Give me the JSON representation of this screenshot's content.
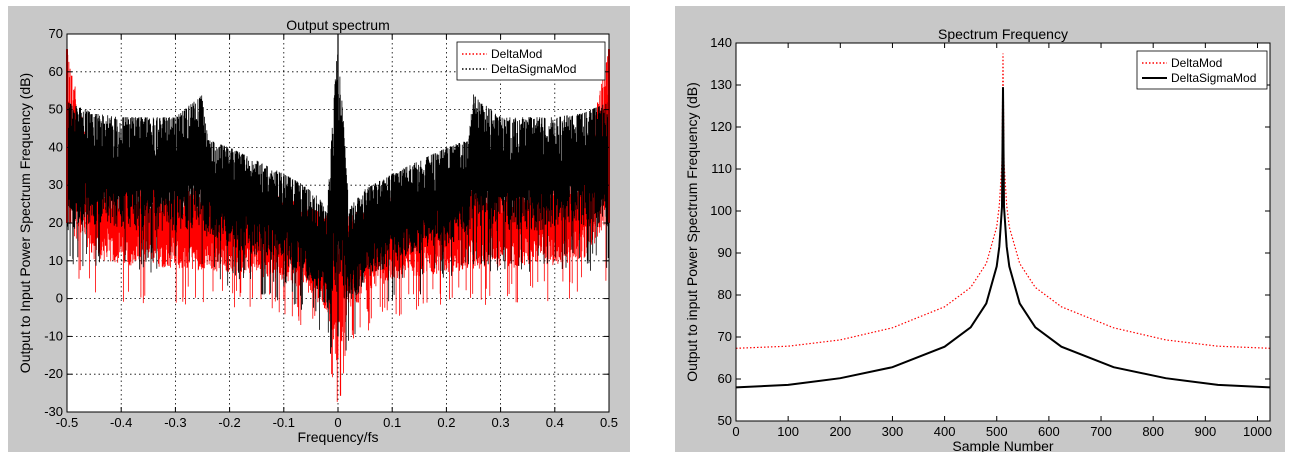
{
  "chart_data": [
    {
      "type": "line",
      "title": "Output spectrum",
      "xlabel": "Frequency/fs",
      "ylabel": "Output to Input Power Spectrum Frequency (dB)",
      "xlim": [
        -0.5,
        0.5
      ],
      "ylim": [
        -30,
        70
      ],
      "xticks": [
        -0.5,
        -0.4,
        -0.3,
        -0.2,
        -0.1,
        0,
        0.1,
        0.2,
        0.3,
        0.4,
        0.5
      ],
      "xtick_labels": [
        "-0.5",
        "-0.4",
        "-0.3",
        "-0.2",
        "-0.1",
        "0",
        "0.1",
        "0.2",
        "0.3",
        "0.4",
        "0.5"
      ],
      "yticks": [
        -30,
        -20,
        -10,
        0,
        10,
        20,
        30,
        40,
        50,
        60,
        70
      ],
      "ytick_labels": [
        "-30",
        "-20",
        "-10",
        "0",
        "10",
        "20",
        "30",
        "40",
        "50",
        "60",
        "70"
      ],
      "grid": "dotted",
      "legend": "top-right",
      "series": [
        {
          "name": "DeltaMod",
          "color": "#ff0000",
          "style": "dotted",
          "envelope_x": [
            -0.5,
            -0.45,
            -0.4,
            -0.3,
            -0.2,
            -0.1,
            -0.05,
            -0.02,
            0,
            0.02,
            0.05,
            0.1,
            0.2,
            0.3,
            0.4,
            0.45,
            0.5
          ],
          "envelope_upper": [
            66,
            33,
            31,
            30,
            29,
            27,
            24,
            22,
            20,
            22,
            24,
            27,
            29,
            30,
            31,
            33,
            66
          ],
          "envelope_lower": [
            10,
            6,
            5,
            4,
            3,
            1,
            -3,
            -9,
            -25,
            -9,
            -3,
            1,
            3,
            4,
            5,
            6,
            10
          ]
        },
        {
          "name": "DeltaSigmaMod",
          "color": "#000000",
          "style": "dotted",
          "envelope_x": [
            -0.5,
            -0.45,
            -0.4,
            -0.3,
            -0.25,
            -0.24,
            -0.2,
            -0.1,
            -0.05,
            -0.02,
            0,
            0.02,
            0.05,
            0.1,
            0.2,
            0.24,
            0.25,
            0.3,
            0.4,
            0.45,
            0.5
          ],
          "envelope_upper": [
            52,
            49,
            48,
            48,
            54,
            42,
            40,
            33,
            29,
            24,
            70,
            24,
            29,
            33,
            40,
            42,
            54,
            48,
            48,
            49,
            52
          ],
          "envelope_lower": [
            12,
            14,
            13,
            12,
            13,
            11,
            9,
            5,
            0,
            -8,
            -10,
            -8,
            0,
            5,
            9,
            11,
            13,
            12,
            13,
            14,
            12
          ]
        }
      ]
    },
    {
      "type": "line",
      "title": "Spectrum Frequency",
      "xlabel": "Sample Number",
      "ylabel": "Output to input Power Spectrum Frequency (dB)",
      "xlim": [
        0,
        1024
      ],
      "ylim": [
        50,
        140
      ],
      "xticks": [
        0,
        100,
        200,
        300,
        400,
        500,
        600,
        700,
        800,
        900,
        1000
      ],
      "xtick_labels": [
        "0",
        "100",
        "200",
        "300",
        "400",
        "500",
        "600",
        "700",
        "800",
        "900",
        "1000"
      ],
      "yticks": [
        50,
        60,
        70,
        80,
        90,
        100,
        110,
        120,
        130,
        140
      ],
      "ytick_labels": [
        "50",
        "60",
        "70",
        "80",
        "90",
        "100",
        "110",
        "120",
        "130",
        "140"
      ],
      "grid": "off",
      "legend": "top-right",
      "series": [
        {
          "name": "DeltaMod",
          "color": "#ff0000",
          "style": "dotted",
          "x": [
            0,
            100,
            200,
            300,
            400,
            450,
            480,
            500,
            505,
            510,
            512,
            514,
            519,
            524,
            544,
            574,
            624,
            724,
            824,
            924,
            1024
          ],
          "values": [
            67.3,
            67.8,
            69.3,
            72.2,
            77.2,
            81.8,
            87.5,
            96.2,
            101.3,
            111.6,
            137.5,
            111.6,
            101.3,
            96.2,
            87.5,
            81.8,
            77.2,
            72.2,
            69.3,
            67.8,
            67.3
          ]
        },
        {
          "name": "DeltaSigmaMod",
          "color": "#000000",
          "style": "solid",
          "x": [
            0,
            100,
            200,
            300,
            400,
            450,
            480,
            500,
            505,
            510,
            512,
            514,
            519,
            524,
            544,
            574,
            624,
            724,
            824,
            924,
            1024
          ],
          "values": [
            58.0,
            58.6,
            60.2,
            62.8,
            67.7,
            72.3,
            78.0,
            86.8,
            91.5,
            101.0,
            129.5,
            101.0,
            91.5,
            86.8,
            78.0,
            72.3,
            67.7,
            62.8,
            60.2,
            58.6,
            58.0
          ]
        }
      ]
    }
  ]
}
